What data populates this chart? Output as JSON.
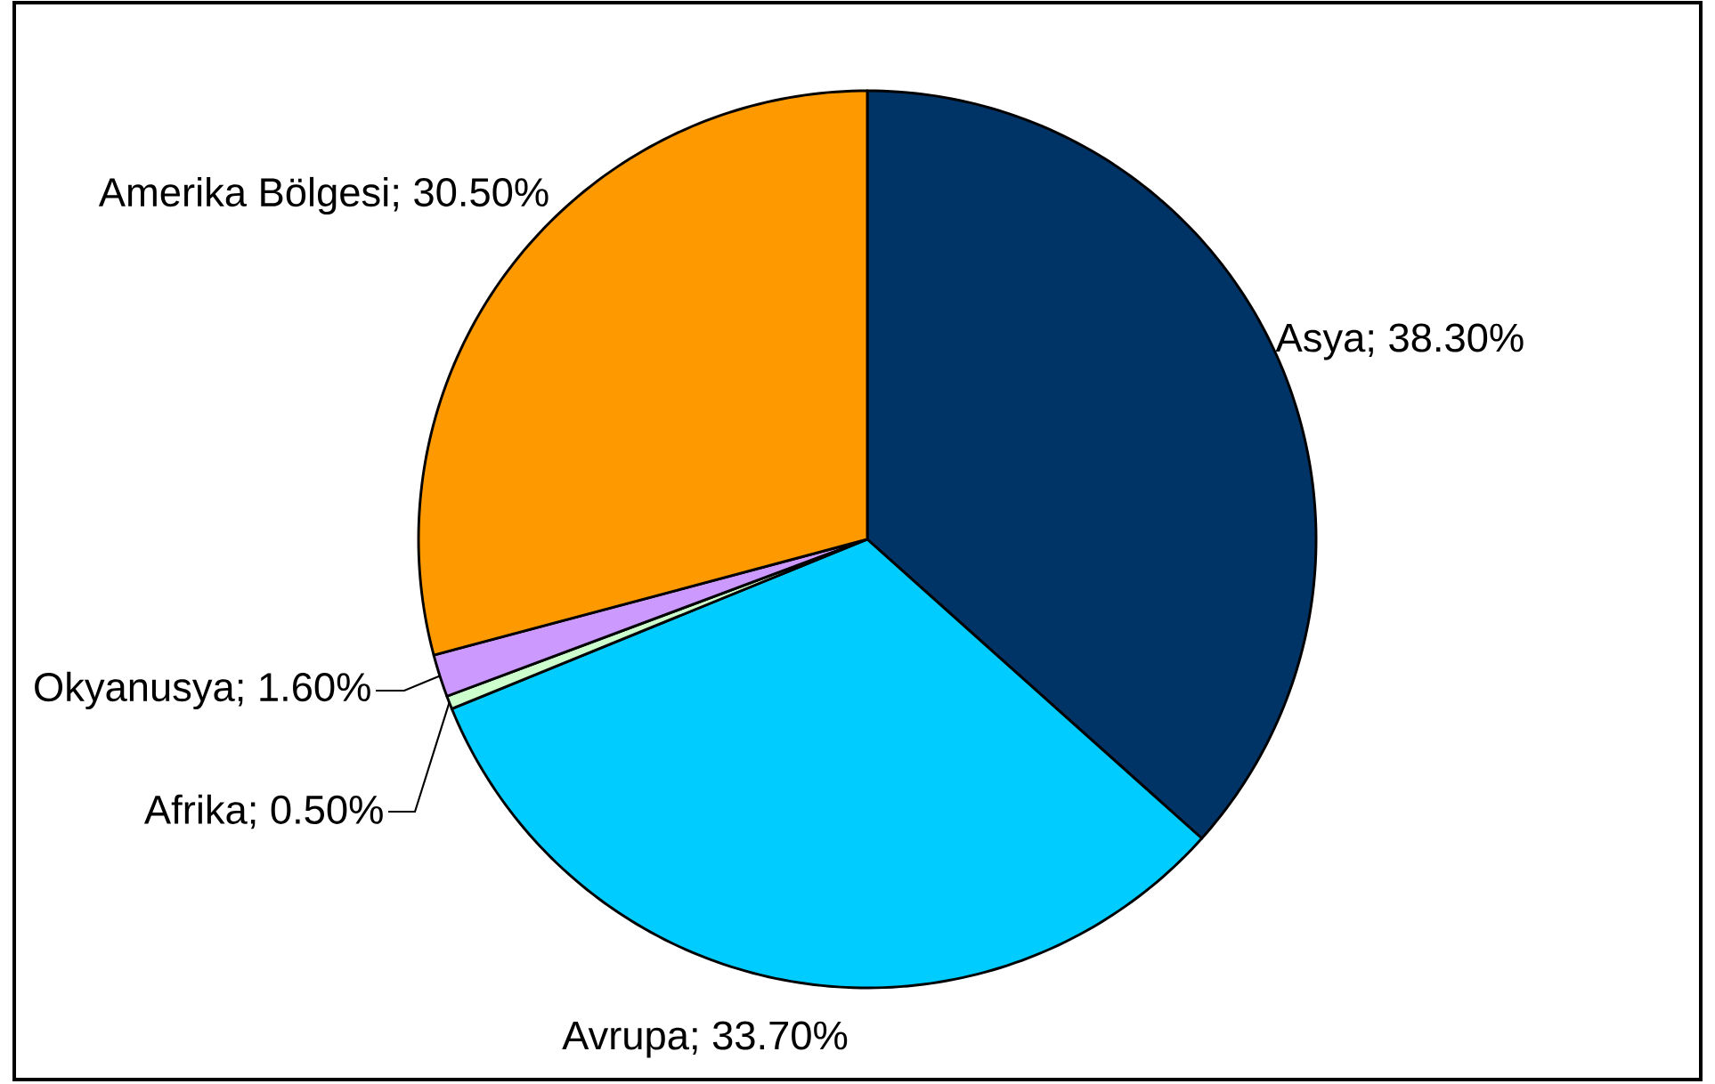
{
  "chart_data": {
    "type": "pie",
    "categories": [
      "Asya",
      "Avrupa",
      "Afrika",
      "Okyanusya",
      "Amerika Bölgesi"
    ],
    "values": [
      38.3,
      33.7,
      0.5,
      1.6,
      30.5
    ],
    "colors": [
      "#003366",
      "#00ccff",
      "#ccffcc",
      "#cc99ff",
      "#ff9900"
    ],
    "value_labels": [
      "; 38.30%",
      "; 33.70%",
      "; 0.50%",
      "; 1.60%",
      "; 30.50%"
    ]
  }
}
